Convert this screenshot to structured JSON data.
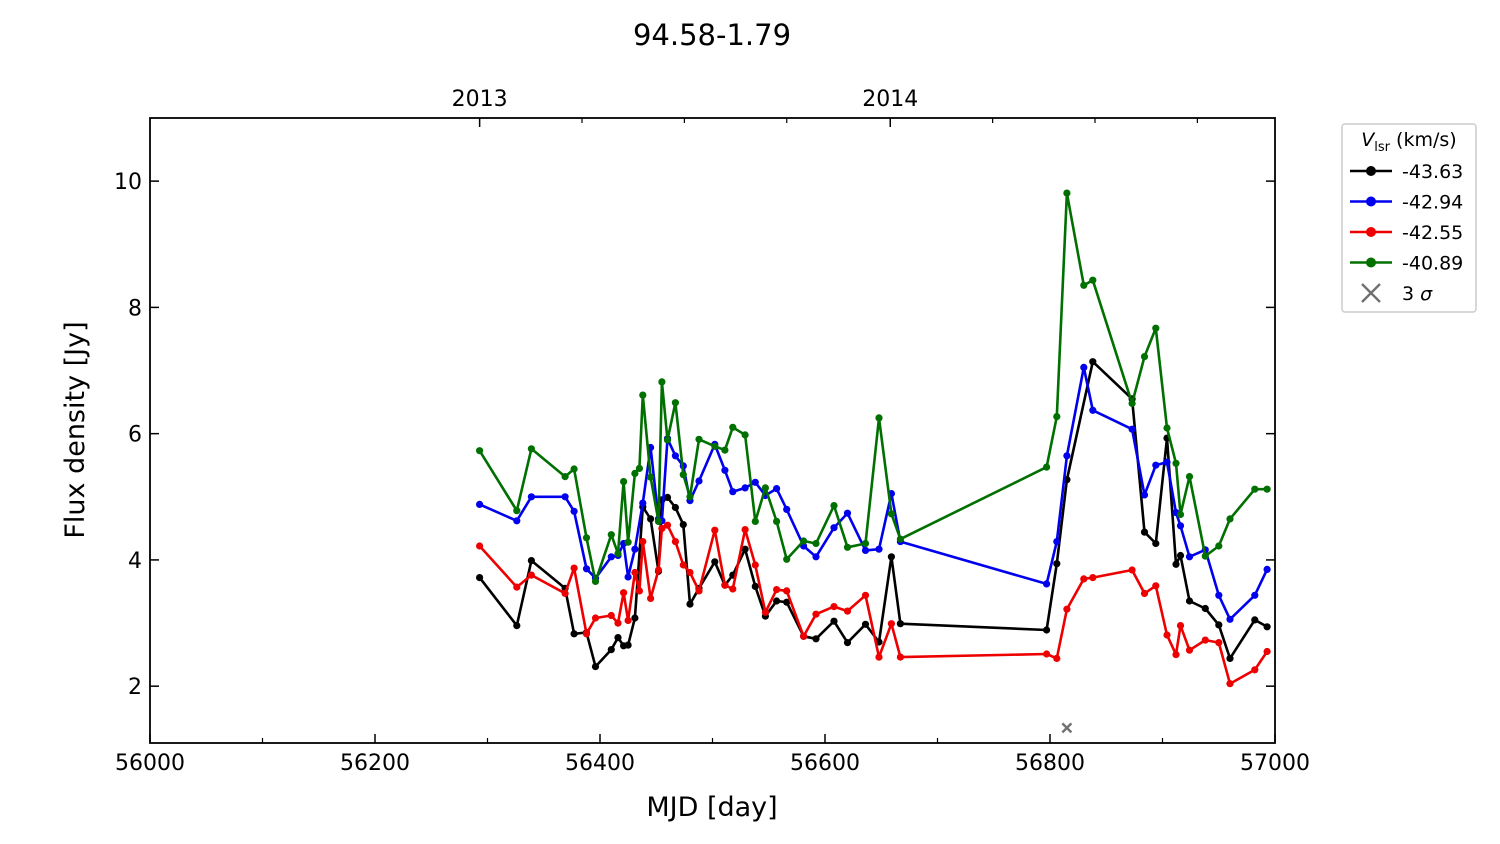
{
  "chart_data": {
    "type": "line",
    "title": "94.58-1.79",
    "xlabel": "MJD [day]",
    "ylabel": "Flux density [Jy]",
    "xlim": [
      56000,
      57000
    ],
    "ylim": [
      1.1,
      11.0
    ],
    "xticks": [
      56000,
      56200,
      56400,
      56600,
      56800,
      57000
    ],
    "xticks_labels": [
      "56000",
      "56200",
      "56400",
      "56600",
      "56800",
      "57000"
    ],
    "yticks": [
      2,
      4,
      6,
      8,
      10
    ],
    "yticks_labels": [
      "2",
      "4",
      "6",
      "8",
      "10"
    ],
    "top_axis": {
      "ticks": [
        56293,
        56658
      ],
      "labels": [
        "2013",
        "2014"
      ]
    },
    "legend": {
      "title_main": "V",
      "title_sub": "lsr",
      "title_rest": " (km/s)",
      "placement": "outside-top-right"
    },
    "grid": false,
    "series": [
      {
        "name": "-43.63",
        "color": "#000000",
        "x": [
          56293,
          56326,
          56339,
          56369,
          56377,
          56388,
          56396,
          56410,
          56416,
          56421,
          56425,
          56431,
          56438,
          56445,
          56452,
          56455,
          56460,
          56467,
          56474,
          56480,
          56488,
          56502,
          56511,
          56518,
          56529,
          56538,
          56547,
          56557,
          56566,
          56581,
          56592,
          56608,
          56620,
          56636,
          56648,
          56659,
          56667,
          56797,
          56806,
          56815,
          56838,
          56873,
          56884,
          56894,
          56904,
          56912,
          56916,
          56924,
          56938,
          56950,
          56960,
          56982,
          56993
        ],
        "y": [
          3.72,
          2.96,
          3.99,
          3.55,
          2.83,
          2.85,
          2.31,
          2.58,
          2.77,
          2.64,
          2.65,
          3.08,
          4.84,
          4.65,
          3.82,
          4.95,
          4.99,
          4.83,
          4.56,
          3.3,
          3.55,
          3.97,
          3.6,
          3.76,
          4.17,
          3.58,
          3.11,
          3.35,
          3.33,
          2.79,
          2.75,
          3.03,
          2.69,
          2.98,
          2.7,
          4.05,
          2.99,
          2.89,
          3.94,
          5.27,
          7.14,
          6.55,
          4.44,
          4.26,
          5.93,
          3.93,
          4.07,
          3.35,
          3.23,
          2.97,
          2.44,
          3.05,
          2.94
        ]
      },
      {
        "name": "-42.94",
        "color": "#0000ee",
        "x": [
          56293,
          56326,
          56339,
          56369,
          56377,
          56388,
          56396,
          56410,
          56416,
          56421,
          56425,
          56431,
          56438,
          56445,
          56452,
          56455,
          56460,
          56467,
          56474,
          56480,
          56488,
          56502,
          56511,
          56518,
          56529,
          56538,
          56547,
          56557,
          56566,
          56581,
          56592,
          56608,
          56620,
          56636,
          56648,
          56659,
          56667,
          56797,
          56806,
          56815,
          56830,
          56838,
          56873,
          56884,
          56894,
          56904,
          56912,
          56916,
          56924,
          56938,
          56950,
          56960,
          56982,
          56993
        ],
        "y": [
          4.88,
          4.62,
          5.0,
          5.0,
          4.77,
          3.86,
          3.71,
          4.05,
          4.07,
          4.26,
          3.73,
          4.17,
          4.9,
          5.78,
          4.65,
          4.62,
          5.92,
          5.65,
          5.49,
          4.94,
          5.25,
          5.83,
          5.42,
          5.08,
          5.14,
          5.23,
          5.02,
          5.13,
          4.8,
          4.22,
          4.05,
          4.51,
          4.74,
          4.15,
          4.17,
          5.05,
          4.29,
          3.62,
          4.29,
          5.65,
          7.05,
          6.37,
          6.07,
          5.03,
          5.5,
          5.55,
          4.75,
          4.54,
          4.05,
          4.16,
          3.44,
          3.06,
          3.44,
          3.85
        ]
      },
      {
        "name": "-42.55",
        "color": "#ee0000",
        "x": [
          56293,
          56326,
          56339,
          56369,
          56377,
          56388,
          56396,
          56410,
          56416,
          56421,
          56425,
          56431,
          56435,
          56438,
          56445,
          56452,
          56455,
          56460,
          56467,
          56474,
          56480,
          56488,
          56502,
          56511,
          56518,
          56529,
          56538,
          56547,
          56557,
          56566,
          56581,
          56592,
          56608,
          56620,
          56636,
          56648,
          56659,
          56667,
          56797,
          56806,
          56815,
          56830,
          56838,
          56873,
          56884,
          56894,
          56904,
          56912,
          56916,
          56924,
          56938,
          56950,
          56960,
          56982,
          56993
        ],
        "y": [
          4.22,
          3.57,
          3.76,
          3.47,
          3.87,
          2.83,
          3.08,
          3.12,
          3.0,
          3.48,
          3.04,
          3.8,
          3.51,
          4.29,
          3.39,
          3.84,
          4.5,
          4.55,
          4.29,
          3.92,
          3.8,
          3.51,
          4.47,
          3.6,
          3.54,
          4.48,
          3.92,
          3.17,
          3.53,
          3.51,
          2.79,
          3.14,
          3.26,
          3.19,
          3.44,
          2.46,
          2.99,
          2.46,
          2.51,
          2.44,
          3.22,
          3.7,
          3.72,
          3.84,
          3.47,
          3.59,
          2.81,
          2.5,
          2.96,
          2.57,
          2.73,
          2.69,
          2.04,
          2.26,
          2.55
        ]
      },
      {
        "name": "-40.89",
        "color": "#007000",
        "x": [
          56293,
          56326,
          56339,
          56369,
          56377,
          56388,
          56396,
          56410,
          56416,
          56421,
          56425,
          56431,
          56435,
          56438,
          56445,
          56452,
          56455,
          56460,
          56467,
          56474,
          56480,
          56488,
          56502,
          56511,
          56518,
          56529,
          56538,
          56547,
          56557,
          56566,
          56581,
          56592,
          56608,
          56620,
          56636,
          56648,
          56659,
          56667,
          56797,
          56806,
          56815,
          56830,
          56838,
          56873,
          56884,
          56894,
          56904,
          56912,
          56916,
          56924,
          56938,
          56950,
          56960,
          56982,
          56993
        ],
        "y": [
          5.73,
          4.78,
          5.76,
          5.32,
          5.44,
          4.35,
          3.66,
          4.4,
          4.1,
          5.24,
          4.28,
          5.37,
          5.45,
          6.61,
          5.31,
          4.61,
          6.82,
          5.9,
          6.49,
          5.35,
          5.0,
          5.91,
          5.8,
          5.74,
          6.1,
          5.98,
          4.61,
          5.14,
          4.61,
          4.01,
          4.3,
          4.26,
          4.86,
          4.2,
          4.26,
          6.25,
          4.73,
          4.33,
          5.47,
          6.27,
          9.81,
          8.35,
          8.43,
          6.48,
          7.22,
          7.67,
          6.09,
          5.53,
          4.72,
          5.32,
          4.06,
          4.22,
          4.65,
          5.12,
          5.12
        ]
      }
    ],
    "sigma3": {
      "name": "3 σ",
      "name_main": "3 ",
      "name_symbol": "σ",
      "color": "#707070",
      "x": [
        56815
      ],
      "y": [
        1.34
      ]
    }
  }
}
